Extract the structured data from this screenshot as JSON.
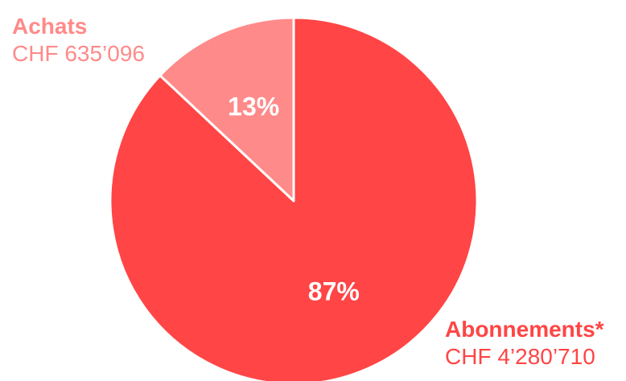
{
  "chart_data": {
    "type": "pie",
    "categories": [
      "Achats",
      "Abonnements*"
    ],
    "amounts": [
      "CHF 635’096",
      "CHF 4’280’710"
    ],
    "values": [
      13,
      87
    ],
    "value_labels": [
      "13%",
      "87%"
    ],
    "colors": [
      "#ff8a8a",
      "#ff4545"
    ]
  }
}
